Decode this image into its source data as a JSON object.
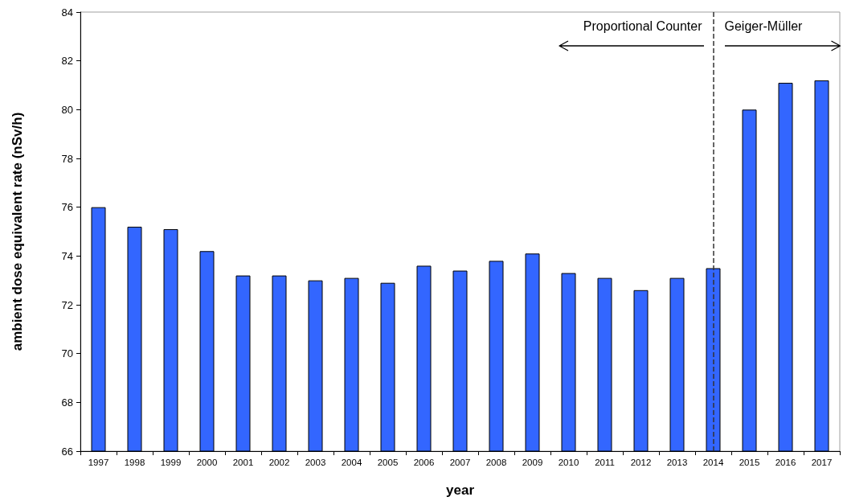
{
  "chart_data": {
    "type": "bar",
    "categories": [
      "1997",
      "1998",
      "1999",
      "2000",
      "2001",
      "2002",
      "2003",
      "2004",
      "2005",
      "2006",
      "2007",
      "2008",
      "2009",
      "2010",
      "2011",
      "2012",
      "2013",
      "2014",
      "2015",
      "2016",
      "2017"
    ],
    "values": [
      76.0,
      75.2,
      75.1,
      74.2,
      73.2,
      73.2,
      73.0,
      73.1,
      72.9,
      73.6,
      73.4,
      73.8,
      74.1,
      73.3,
      73.1,
      72.6,
      73.1,
      73.5,
      80.0,
      81.1,
      81.2
    ],
    "color": "#3366ff",
    "xlabel": "year",
    "ylabel": "ambient dose equivalent rate (nSv/h)",
    "ylim": [
      66,
      84
    ],
    "yticks": [
      66,
      68,
      70,
      72,
      74,
      76,
      78,
      80,
      82,
      84
    ],
    "ref_lines": [
      {
        "axis": "x",
        "value": "2014",
        "line_style": "dashed",
        "color": "#333333"
      }
    ],
    "annotations": [
      "Proportional Counter",
      "Geiger-Müller"
    ]
  }
}
